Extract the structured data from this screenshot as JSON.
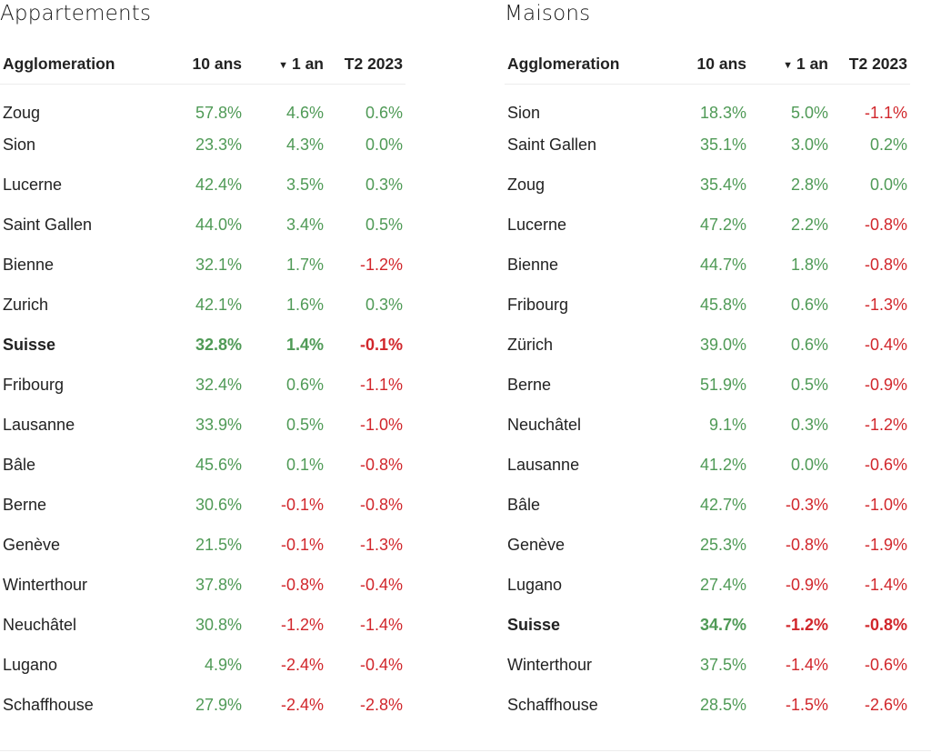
{
  "colors": {
    "positive": "#4f9a56",
    "negative": "#d1262b"
  },
  "icons": {
    "sort": "triangle-down-icon"
  },
  "apartments": {
    "title": "Appartements",
    "headers": {
      "name": "Agglomeration",
      "y10": "10 ans",
      "sort_glyph": "▼",
      "y1": "1 an",
      "t2": "T2 2023"
    },
    "rows": [
      {
        "name": "Zoug",
        "y10": "57.8%",
        "y1": "4.6%",
        "t2": "0.6%"
      },
      {
        "name": "Sion",
        "y10": "23.3%",
        "y1": "4.3%",
        "t2": "0.0%"
      },
      {
        "name": "Lucerne",
        "y10": "42.4%",
        "y1": "3.5%",
        "t2": "0.3%"
      },
      {
        "name": "Saint Gallen",
        "y10": "44.0%",
        "y1": "3.4%",
        "t2": "0.5%"
      },
      {
        "name": "Bienne",
        "y10": "32.1%",
        "y1": "1.7%",
        "t2": "-1.2%"
      },
      {
        "name": "Zurich",
        "y10": "42.1%",
        "y1": "1.6%",
        "t2": "0.3%"
      },
      {
        "name": "Suisse",
        "y10": "32.8%",
        "y1": "1.4%",
        "t2": "-0.1%",
        "bold": true
      },
      {
        "name": "Fribourg",
        "y10": "32.4%",
        "y1": "0.6%",
        "t2": "-1.1%"
      },
      {
        "name": "Lausanne",
        "y10": "33.9%",
        "y1": "0.5%",
        "t2": "-1.0%"
      },
      {
        "name": "Bâle",
        "y10": "45.6%",
        "y1": "0.1%",
        "t2": "-0.8%"
      },
      {
        "name": "Berne",
        "y10": "30.6%",
        "y1": "-0.1%",
        "t2": "-0.8%"
      },
      {
        "name": "Genève",
        "y10": "21.5%",
        "y1": "-0.1%",
        "t2": "-1.3%"
      },
      {
        "name": "Winterthour",
        "y10": "37.8%",
        "y1": "-0.8%",
        "t2": "-0.4%"
      },
      {
        "name": "Neuchâtel",
        "y10": "30.8%",
        "y1": "-1.2%",
        "t2": "-1.4%"
      },
      {
        "name": "Lugano",
        "y10": "4.9%",
        "y1": "-2.4%",
        "t2": "-0.4%"
      },
      {
        "name": "Schaffhouse",
        "y10": "27.9%",
        "y1": "-2.4%",
        "t2": "-2.8%"
      }
    ]
  },
  "houses": {
    "title": "Maisons",
    "headers": {
      "name": "Agglomeration",
      "y10": "10 ans",
      "sort_glyph": "▼",
      "y1": "1 an",
      "t2": "T2 2023"
    },
    "rows": [
      {
        "name": "Sion",
        "y10": "18.3%",
        "y1": "5.0%",
        "t2": "-1.1%"
      },
      {
        "name": "Saint Gallen",
        "y10": "35.1%",
        "y1": "3.0%",
        "t2": "0.2%"
      },
      {
        "name": "Zoug",
        "y10": "35.4%",
        "y1": "2.8%",
        "t2": "0.0%"
      },
      {
        "name": "Lucerne",
        "y10": "47.2%",
        "y1": "2.2%",
        "t2": "-0.8%"
      },
      {
        "name": "Bienne",
        "y10": "44.7%",
        "y1": "1.8%",
        "t2": "-0.8%"
      },
      {
        "name": "Fribourg",
        "y10": "45.8%",
        "y1": "0.6%",
        "t2": "-1.3%"
      },
      {
        "name": "Zürich",
        "y10": "39.0%",
        "y1": "0.6%",
        "t2": "-0.4%"
      },
      {
        "name": "Berne",
        "y10": "51.9%",
        "y1": "0.5%",
        "t2": "-0.9%"
      },
      {
        "name": "Neuchâtel",
        "y10": "9.1%",
        "y1": "0.3%",
        "t2": "-1.2%"
      },
      {
        "name": "Lausanne",
        "y10": "41.2%",
        "y1": "0.0%",
        "t2": "-0.6%"
      },
      {
        "name": "Bâle",
        "y10": "42.7%",
        "y1": "-0.3%",
        "t2": "-1.0%"
      },
      {
        "name": "Genève",
        "y10": "25.3%",
        "y1": "-0.8%",
        "t2": "-1.9%"
      },
      {
        "name": "Lugano",
        "y10": "27.4%",
        "y1": "-0.9%",
        "t2": "-1.4%"
      },
      {
        "name": "Suisse",
        "y10": "34.7%",
        "y1": "-1.2%",
        "t2": "-0.8%",
        "bold": true
      },
      {
        "name": "Winterthour",
        "y10": "37.5%",
        "y1": "-1.4%",
        "t2": "-0.6%"
      },
      {
        "name": "Schaffhouse",
        "y10": "28.5%",
        "y1": "-1.5%",
        "t2": "-2.6%"
      }
    ]
  }
}
